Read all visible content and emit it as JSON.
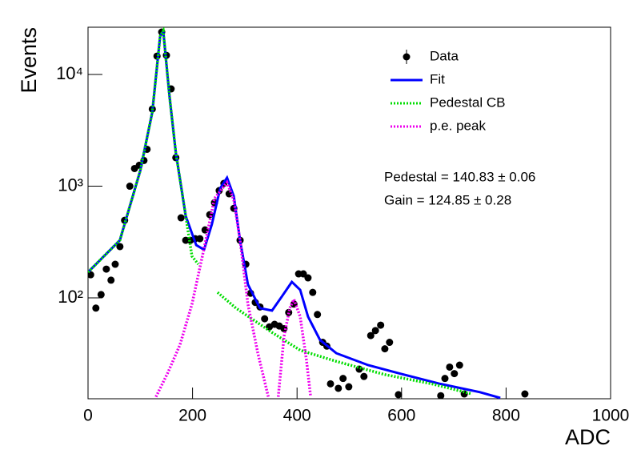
{
  "chart_data": {
    "type": "line",
    "ylabel": "Events",
    "xlabel": "ADC",
    "xlim": [
      0,
      1000
    ],
    "xticks": [
      0,
      200,
      400,
      600,
      800,
      1000
    ],
    "ylim": [
      12.5,
      26500
    ],
    "yticks": [
      {
        "value": 100,
        "label": "10²"
      },
      {
        "value": 1000,
        "label": "10³"
      },
      {
        "value": 10000,
        "label": "10⁴"
      }
    ],
    "log_y": true,
    "legend": "upper right",
    "annotations": [
      "Pedestal = 140.83 ± 0.06",
      "Gain = 124.85 ± 0.28"
    ],
    "series": [
      {
        "name": "Data",
        "color": "#000000",
        "mode": "markers",
        "x": [
          5,
          15,
          25,
          35,
          44,
          52,
          61,
          70,
          80,
          89,
          98,
          107,
          113,
          123,
          132,
          141,
          150,
          159,
          168,
          178,
          187,
          196,
          205,
          214,
          224,
          233,
          242,
          251,
          260,
          270,
          279,
          291,
          302,
          311,
          320,
          329,
          338,
          347,
          357,
          366,
          375,
          384,
          394,
          403,
          412,
          421,
          430,
          439,
          449,
          457,
          464,
          479,
          488,
          499,
          519,
          528,
          541,
          550,
          560,
          568,
          577,
          594,
          675,
          683,
          692,
          701,
          711,
          720,
          836
        ],
        "values": [
          161,
          81,
          107,
          181,
          144,
          200,
          288,
          495,
          1000,
          1440,
          1540,
          1700,
          2140,
          4900,
          14600,
          24000,
          14850,
          7430,
          1800,
          521,
          328,
          328,
          339,
          339,
          406,
          556,
          713,
          913,
          1060,
          855,
          633,
          328,
          200,
          110,
          91,
          83,
          65,
          55,
          58,
          56,
          53,
          74,
          88,
          164,
          164,
          151,
          112,
          71,
          40,
          37,
          17,
          15.5,
          19,
          16,
          23,
          19.8,
          46,
          51,
          57,
          35,
          40,
          13.6,
          13.3,
          19,
          24,
          21,
          25,
          13.8,
          13.8
        ]
      },
      {
        "name": "Fit",
        "color": "#0000ff",
        "mode": "line",
        "x": [
          0,
          61,
          100,
          123,
          138,
          144,
          156,
          168,
          187,
          207,
          222,
          237,
          253,
          266,
          279,
          291,
          306,
          329,
          352,
          371,
          390,
          406,
          421,
          444,
          475,
          536,
          597,
          674,
          750,
          789
        ],
        "values": [
          170,
          328,
          1380,
          4600,
          22000,
          24600,
          6300,
          2000,
          540,
          297,
          270,
          457,
          960,
          1190,
          813,
          328,
          132,
          81,
          77,
          103,
          139,
          118,
          68,
          42,
          32,
          25,
          21,
          17,
          14.3,
          12.7
        ]
      },
      {
        "name": "Pedestal CB",
        "color": "#00dd00",
        "mode": "dotted",
        "x": [
          0,
          61,
          100,
          123,
          138,
          144,
          156,
          168,
          187,
          199,
          211,
          null,
          248,
          283,
          352,
          406,
          475,
          567,
          658,
          735
        ],
        "values": [
          170,
          328,
          1380,
          4600,
          22000,
          24600,
          6300,
          2000,
          540,
          236,
          200,
          null,
          112,
          81,
          49,
          34,
          27,
          20.6,
          17,
          13.8
        ]
      },
      {
        "name": "p.e. peak",
        "color": "#ee00ee",
        "mode": "dotted",
        "x": [
          130,
          153,
          176,
          199,
          222,
          242,
          266,
          279,
          291,
          306,
          325,
          345,
          null,
          364,
          375,
          386,
          394,
          406,
          418,
          426
        ],
        "values": [
          13,
          21.5,
          38,
          88,
          278,
          776,
          1080,
          750,
          328,
          88,
          32,
          13,
          null,
          13,
          45,
          81,
          97,
          68,
          27.5,
          13
        ]
      }
    ]
  }
}
